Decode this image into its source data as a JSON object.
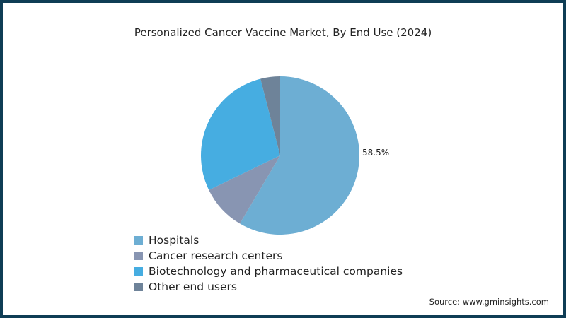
{
  "chart_data": {
    "type": "pie",
    "title": "Personalized Cancer Vaccine Market, By End Use (2024)",
    "categories": [
      "Hospitals",
      "Cancer research centers",
      "Biotechnology and pharmaceutical companies",
      "Other end users"
    ],
    "values": [
      58.5,
      9.3,
      28.2,
      4.0
    ],
    "colors": [
      "#6daed3",
      "#8895b2",
      "#46ade1",
      "#6e8399"
    ],
    "data_labels": [
      {
        "category": "Hospitals",
        "text": "58.5%"
      }
    ],
    "legend_position": "bottom-left"
  },
  "labels": {
    "hospitals": "58.5%"
  },
  "source": "Source: www.gminsights.com"
}
